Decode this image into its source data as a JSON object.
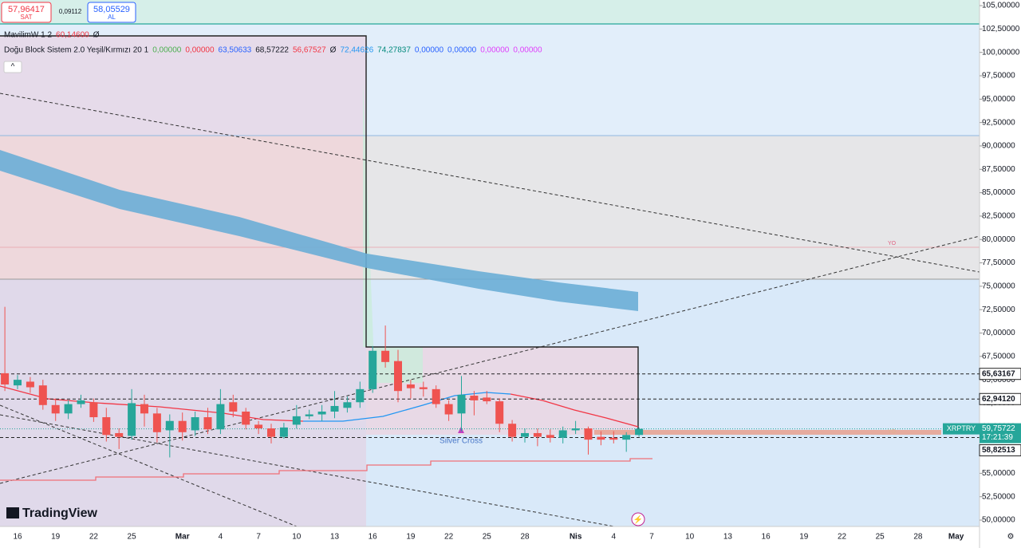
{
  "chart_data": {
    "type": "candlestick",
    "categories": [
      null,
      "16",
      null,
      null,
      "19",
      null,
      null,
      "22",
      null,
      null,
      "25",
      null,
      null,
      null,
      "Mar",
      null,
      null,
      "4",
      null,
      null,
      "7",
      null,
      null,
      "10",
      null,
      null,
      "13",
      null,
      null,
      "16",
      null,
      null,
      "19",
      null,
      null,
      "22",
      null,
      null,
      "25",
      null,
      null,
      "28",
      null,
      null,
      null,
      "Nis",
      null,
      null,
      "4",
      null,
      null,
      "7",
      null,
      null,
      "10",
      null,
      null,
      "13",
      null,
      null,
      "16",
      null,
      null,
      "19",
      null,
      null,
      "22",
      null,
      null,
      "25",
      null,
      null,
      "28",
      null,
      null,
      "May",
      null
    ],
    "open": [
      65.7,
      64.4,
      64.8,
      64.4,
      62.3,
      61.4,
      62.4,
      62.6,
      61.0,
      59.3,
      59.0,
      62.4,
      61.4,
      59.6,
      60.6,
      59.6,
      61.0,
      59.7,
      62.6,
      61.6,
      60.2,
      59.8,
      58.9,
      60.2,
      61.1,
      61.3,
      61.6,
      62.0,
      62.6,
      64.0,
      68.1,
      67.0,
      64.5,
      64.2,
      64.0,
      62.4,
      61.4,
      63.3,
      63.1,
      62.7,
      60.3,
      58.9,
      59.3,
      59.1,
      58.8,
      59.6,
      59.8,
      58.9,
      58.8,
      58.6,
      59.1,
      null,
      null,
      null,
      null,
      null,
      null,
      null,
      null,
      null,
      null,
      null,
      null,
      null,
      null,
      null,
      null,
      null,
      null,
      null,
      null,
      null,
      null,
      null,
      null,
      null,
      null
    ],
    "high": [
      72.8,
      65.5,
      65.3,
      65.0,
      63.0,
      62.8,
      63.4,
      63.0,
      62.0,
      59.8,
      64.0,
      63.4,
      62.0,
      61.3,
      61.5,
      61.6,
      62.0,
      64.0,
      63.4,
      62.0,
      60.6,
      60.3,
      60.4,
      62.3,
      61.8,
      62.3,
      63.8,
      63.2,
      64.8,
      68.6,
      70.8,
      68.2,
      65.0,
      64.8,
      64.4,
      62.8,
      65.4,
      63.8,
      63.8,
      63.0,
      60.7,
      59.8,
      59.8,
      59.7,
      60.0,
      60.6,
      60.0,
      59.5,
      59.5,
      59.4,
      59.9,
      null,
      null,
      null,
      null,
      null,
      null,
      null,
      null,
      null,
      null,
      null,
      null,
      null,
      null,
      null,
      null,
      null,
      null,
      null,
      null,
      null,
      null,
      null,
      null,
      null,
      null
    ],
    "low": [
      63.8,
      64.0,
      63.6,
      61.8,
      60.6,
      60.8,
      62.0,
      60.5,
      58.4,
      57.6,
      58.6,
      60.0,
      58.3,
      56.7,
      58.5,
      59.0,
      59.2,
      59.2,
      61.0,
      59.7,
      59.2,
      58.2,
      58.7,
      59.8,
      60.8,
      60.6,
      60.9,
      61.5,
      62.0,
      63.6,
      66.3,
      62.6,
      63.0,
      63.2,
      62.0,
      60.6,
      59.5,
      61.2,
      62.4,
      59.4,
      58.4,
      58.3,
      57.9,
      58.3,
      58.2,
      59.2,
      57.0,
      58.0,
      58.2,
      57.3,
      58.9,
      null,
      null,
      null,
      null,
      null,
      null,
      null,
      null,
      null,
      null,
      null,
      null,
      null,
      null,
      null,
      null,
      null,
      null,
      null,
      null,
      null,
      null,
      null,
      null,
      null,
      null
    ],
    "close": [
      64.5,
      65.0,
      64.2,
      62.3,
      61.4,
      62.4,
      62.8,
      61.0,
      59.1,
      58.9,
      62.5,
      61.4,
      59.4,
      60.6,
      59.4,
      61.0,
      59.7,
      62.4,
      61.6,
      60.2,
      59.8,
      58.9,
      59.9,
      61.1,
      61.3,
      61.6,
      62.2,
      62.6,
      64.0,
      68.1,
      66.9,
      63.8,
      64.1,
      64.0,
      62.4,
      61.3,
      63.4,
      62.8,
      62.7,
      60.3,
      58.9,
      59.3,
      58.9,
      58.8,
      59.6,
      59.8,
      58.6,
      58.6,
      58.6,
      59.1,
      59.76,
      null,
      null,
      null,
      null,
      null,
      null,
      null,
      null,
      null,
      null,
      null,
      null,
      null,
      null,
      null,
      null,
      null,
      null,
      null,
      null,
      null,
      null,
      null,
      null,
      null,
      null
    ],
    "up_color": "#26a69a",
    "down_color": "#ef5350",
    "ylim": [
      49.32,
      105.6
    ],
    "yticks": [
      {
        "value": 105,
        "label": "105,00000"
      },
      {
        "value": 102.5,
        "label": "102,50000"
      },
      {
        "value": 100,
        "label": "100,00000"
      },
      {
        "value": 97.5,
        "label": "97,50000"
      },
      {
        "value": 95,
        "label": "95,00000"
      },
      {
        "value": 92.5,
        "label": "92,50000"
      },
      {
        "value": 90,
        "label": "90,00000"
      },
      {
        "value": 87.5,
        "label": "87,50000"
      },
      {
        "value": 85,
        "label": "85,00000"
      },
      {
        "value": 82.5,
        "label": "82,50000"
      },
      {
        "value": 80,
        "label": "80,00000"
      },
      {
        "value": 77.5,
        "label": "77,50000"
      },
      {
        "value": 75,
        "label": "75,00000"
      },
      {
        "value": 72.5,
        "label": "72,50000"
      },
      {
        "value": 70,
        "label": "70,00000"
      },
      {
        "value": 67.5,
        "label": "67,50000"
      },
      {
        "value": 65,
        "label": "65,00000"
      },
      {
        "value": 62.5,
        "label": "62,50000"
      },
      {
        "value": 60,
        "label": "60,00000"
      },
      {
        "value": 57.5,
        "label": "57,50000"
      },
      {
        "value": 55,
        "label": "55,00000"
      },
      {
        "value": 52.5,
        "label": "52,50000"
      },
      {
        "value": 50,
        "label": "50,00000"
      }
    ],
    "price_lines": [
      {
        "value": 65.63167,
        "label": "65,63167"
      },
      {
        "value": 62.9412,
        "label": "62,94120"
      },
      {
        "value": 58.82513,
        "label": "58,82513"
      }
    ],
    "last_price": {
      "value": 59.75722,
      "label": "59,75722",
      "symbol": "XRPTRY",
      "countdown": "17:21:39"
    },
    "order_panel": {
      "sell_price": "57,96417",
      "sell_label": "SAT",
      "spread": "0,09112",
      "buy_price": "58,05529",
      "buy_label": "AL"
    },
    "indicators": [
      {
        "name": "MavilimW 1 2",
        "values": [
          {
            "text": "60,14600",
            "color": "#f23645"
          },
          {
            "text": "Ø",
            "color": "#131722"
          }
        ]
      },
      {
        "name": "Doğu Block Sistem 2.0 Yeşil/Kırmızı 20 1",
        "values": [
          {
            "text": "0,00000",
            "color": "#4caf50"
          },
          {
            "text": "0,00000",
            "color": "#f23645"
          },
          {
            "text": "63,50633",
            "color": "#2962ff"
          },
          {
            "text": "68,57222",
            "color": "#131722"
          },
          {
            "text": "56,67527",
            "color": "#f23645"
          },
          {
            "text": "Ø",
            "color": "#131722"
          },
          {
            "text": "72,44626",
            "color": "#2196f3"
          },
          {
            "text": "74,27837",
            "color": "#00897b"
          },
          {
            "text": "0,00000",
            "color": "#2962ff"
          },
          {
            "text": "0,00000",
            "color": "#2962ff"
          },
          {
            "text": "0,00000",
            "color": "#e040fb"
          },
          {
            "text": "0,00000",
            "color": "#e040fb"
          }
        ]
      }
    ],
    "annotations": [
      {
        "text": "Silver Cross"
      },
      {
        "text": "YO"
      },
      {
        "text": "YO"
      }
    ],
    "brand": "TradingView"
  }
}
